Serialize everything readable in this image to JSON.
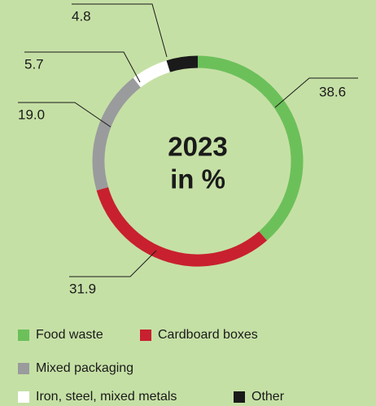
{
  "chart_data": {
    "type": "donut",
    "title": "2023",
    "subtitle": "in %",
    "categories": [
      "Food waste",
      "Cardboard boxes",
      "Mixed packaging",
      "Iron, steel, mixed metals",
      "Other"
    ],
    "values": [
      38.6,
      31.9,
      19.0,
      5.7,
      4.8
    ],
    "value_labels": [
      "38.6",
      "31.9",
      "19.0",
      "5.7",
      "4.8"
    ],
    "colors": [
      "#6cc05a",
      "#c8202f",
      "#9a9b9d",
      "#ffffff",
      "#1a1a1a"
    ]
  }
}
